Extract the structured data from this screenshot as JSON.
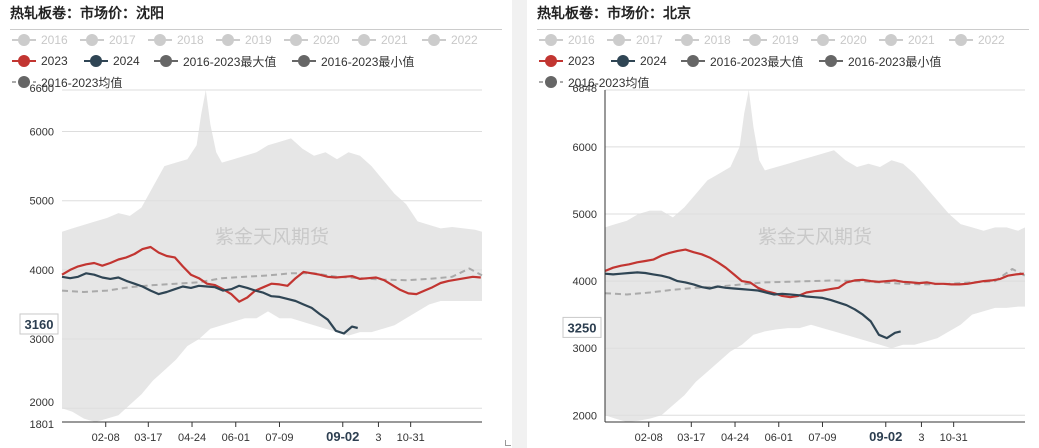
{
  "panels": [
    {
      "title": "热轧板卷：市场价：沈阳",
      "value_badge": "3160",
      "watermark": "紫金天风期货",
      "legend": [
        {
          "label": "2016",
          "enabled": false
        },
        {
          "label": "2017",
          "enabled": false
        },
        {
          "label": "2018",
          "enabled": false
        },
        {
          "label": "2019",
          "enabled": false
        },
        {
          "label": "2020",
          "enabled": false
        },
        {
          "label": "2021",
          "enabled": false
        },
        {
          "label": "2022",
          "enabled": false
        },
        {
          "label": "2023",
          "enabled": true
        },
        {
          "label": "2024",
          "enabled": true
        },
        {
          "label": "2016-2023最大值",
          "enabled": true
        },
        {
          "label": "2016-2023最小值",
          "enabled": true
        },
        {
          "label": "2016-2023均值",
          "enabled": true
        }
      ],
      "x_ticks": [
        "02-08",
        "03-17",
        "04-24",
        "06-01",
        "07-09",
        "09-02",
        "3",
        "10-31"
      ],
      "x_tick_bold": "09-02",
      "y_tick_labels": [
        "6600",
        "6000",
        "5000",
        "4000",
        "3000",
        "2000",
        "1801"
      ]
    },
    {
      "title": "热轧板卷：市场价：北京",
      "value_badge": "3250",
      "watermark": "紫金天风期货",
      "legend": [
        {
          "label": "2016",
          "enabled": false
        },
        {
          "label": "2017",
          "enabled": false
        },
        {
          "label": "2018",
          "enabled": false
        },
        {
          "label": "2019",
          "enabled": false
        },
        {
          "label": "2020",
          "enabled": false
        },
        {
          "label": "2021",
          "enabled": false
        },
        {
          "label": "2022",
          "enabled": false
        },
        {
          "label": "2023",
          "enabled": true
        },
        {
          "label": "2024",
          "enabled": true
        },
        {
          "label": "2016-2023最大值",
          "enabled": true
        },
        {
          "label": "2016-2023最小值",
          "enabled": true
        },
        {
          "label": "2016-2023均值",
          "enabled": true
        }
      ],
      "x_ticks": [
        "02-08",
        "03-17",
        "04-24",
        "06-01",
        "07-09",
        "09-02",
        "3",
        "10-31"
      ],
      "x_tick_bold": "09-02",
      "y_tick_labels": [
        "6848",
        "6000",
        "5000",
        "4000",
        "3000",
        "2000"
      ]
    }
  ],
  "colors": {
    "series_2023": "#c23531",
    "series_2024": "#2f4554",
    "max_min_marker": "#666666",
    "mean_line": "#aaaaaa",
    "band_fill": "#e6e6e6",
    "disabled": "#cccccc"
  },
  "chart_data": [
    {
      "type": "line",
      "title": "热轧板卷：市场价：沈阳",
      "ylim": [
        1801,
        6600
      ],
      "yticks": [
        6600,
        6000,
        5000,
        4000,
        3000,
        2000,
        1801
      ],
      "x_axis_type": "day_of_year",
      "x_domain": [
        1,
        366
      ],
      "x_tick_days": [
        39,
        76,
        114,
        152,
        190,
        245,
        276,
        304
      ],
      "x_tick_labels": [
        "02-08",
        "03-17",
        "04-24",
        "06-01",
        "07-09",
        "09-02",
        "3",
        "10-31"
      ],
      "last_value_label": 3160,
      "series": [
        {
          "name": "2023",
          "x": [
            1,
            8,
            15,
            22,
            29,
            36,
            43,
            50,
            57,
            64,
            71,
            78,
            85,
            92,
            99,
            106,
            113,
            120,
            127,
            134,
            141,
            148,
            155,
            162,
            169,
            176,
            183,
            190,
            197,
            204,
            211,
            218,
            225,
            232,
            239,
            246,
            253,
            260,
            267,
            274,
            281,
            288,
            295,
            302,
            309,
            316,
            323,
            330,
            337,
            344,
            351,
            358,
            365
          ],
          "y": [
            3930,
            4000,
            4050,
            4080,
            4100,
            4060,
            4100,
            4150,
            4180,
            4230,
            4300,
            4330,
            4250,
            4200,
            4180,
            4050,
            3930,
            3880,
            3800,
            3780,
            3720,
            3650,
            3540,
            3600,
            3700,
            3750,
            3800,
            3790,
            3770,
            3880,
            3970,
            3950,
            3930,
            3900,
            3890,
            3900,
            3910,
            3870,
            3880,
            3890,
            3850,
            3780,
            3710,
            3660,
            3650,
            3700,
            3750,
            3810,
            3840,
            3860,
            3880,
            3900,
            3890
          ]
        },
        {
          "name": "2024",
          "x": [
            1,
            8,
            15,
            22,
            29,
            36,
            43,
            50,
            57,
            64,
            71,
            78,
            85,
            92,
            99,
            106,
            113,
            120,
            127,
            134,
            141,
            148,
            155,
            162,
            169,
            176,
            183,
            190,
            197,
            204,
            211,
            218,
            225,
            232,
            239,
            246,
            253,
            258
          ],
          "y": [
            3900,
            3880,
            3900,
            3950,
            3930,
            3890,
            3870,
            3890,
            3840,
            3800,
            3760,
            3700,
            3650,
            3680,
            3720,
            3760,
            3740,
            3770,
            3760,
            3750,
            3700,
            3720,
            3770,
            3740,
            3700,
            3670,
            3620,
            3610,
            3580,
            3550,
            3500,
            3450,
            3360,
            3280,
            3120,
            3080,
            3180,
            3160
          ]
        },
        {
          "name": "2016-2023最大值",
          "x": [
            1,
            10,
            20,
            30,
            40,
            50,
            60,
            70,
            80,
            90,
            100,
            110,
            118,
            122,
            126,
            130,
            135,
            140,
            150,
            160,
            170,
            180,
            190,
            200,
            210,
            220,
            230,
            240,
            250,
            260,
            270,
            280,
            290,
            300,
            310,
            320,
            330,
            340,
            350,
            360,
            366
          ],
          "y": [
            4550,
            4600,
            4650,
            4700,
            4750,
            4820,
            4780,
            4900,
            5200,
            5500,
            5550,
            5600,
            5800,
            6250,
            6600,
            6100,
            5700,
            5550,
            5600,
            5650,
            5700,
            5800,
            5850,
            5900,
            5750,
            5650,
            5700,
            5600,
            5700,
            5650,
            5500,
            5300,
            5100,
            4950,
            4700,
            4650,
            4600,
            4620,
            4600,
            4580,
            4550
          ]
        },
        {
          "name": "2016-2023最小值",
          "x": [
            1,
            10,
            20,
            30,
            40,
            50,
            60,
            70,
            80,
            90,
            100,
            110,
            120,
            130,
            140,
            150,
            160,
            170,
            180,
            190,
            200,
            210,
            220,
            230,
            240,
            250,
            260,
            270,
            280,
            290,
            300,
            310,
            320,
            330,
            340,
            350,
            360,
            366
          ],
          "y": [
            2000,
            1950,
            1850,
            1801,
            1850,
            1900,
            2050,
            2200,
            2400,
            2550,
            2700,
            2900,
            3000,
            3150,
            3200,
            3250,
            3300,
            3300,
            3400,
            3300,
            3300,
            3250,
            3200,
            3150,
            3100,
            3050,
            3100,
            3100,
            3150,
            3200,
            3300,
            3400,
            3500,
            3550,
            3550,
            3550,
            3550,
            3550
          ]
        },
        {
          "name": "2016-2023均值",
          "x": [
            1,
            20,
            40,
            60,
            80,
            100,
            120,
            140,
            160,
            180,
            200,
            220,
            240,
            260,
            280,
            300,
            320,
            340,
            355,
            366
          ],
          "y": [
            3700,
            3680,
            3700,
            3750,
            3780,
            3800,
            3820,
            3880,
            3900,
            3920,
            3950,
            3950,
            3900,
            3880,
            3860,
            3850,
            3870,
            3900,
            4020,
            3920
          ]
        }
      ]
    },
    {
      "type": "line",
      "title": "热轧板卷：市场价：北京",
      "ylim": [
        1900,
        6848
      ],
      "yticks": [
        6848,
        6000,
        5000,
        4000,
        3000,
        2000
      ],
      "x_axis_type": "day_of_year",
      "x_domain": [
        1,
        366
      ],
      "x_tick_days": [
        39,
        76,
        114,
        152,
        190,
        245,
        276,
        304
      ],
      "x_tick_labels": [
        "02-08",
        "03-17",
        "04-24",
        "06-01",
        "07-09",
        "09-02",
        "3",
        "10-31"
      ],
      "last_value_label": 3250,
      "series": [
        {
          "name": "2023",
          "x": [
            1,
            8,
            15,
            22,
            29,
            36,
            43,
            50,
            57,
            64,
            71,
            78,
            85,
            92,
            99,
            106,
            113,
            120,
            127,
            134,
            141,
            148,
            155,
            162,
            169,
            176,
            183,
            190,
            197,
            204,
            211,
            218,
            225,
            232,
            239,
            246,
            253,
            260,
            267,
            274,
            281,
            288,
            295,
            302,
            309,
            316,
            323,
            330,
            337,
            344,
            351,
            358,
            365
          ],
          "y": [
            4150,
            4200,
            4230,
            4250,
            4280,
            4300,
            4320,
            4380,
            4420,
            4450,
            4470,
            4430,
            4400,
            4350,
            4280,
            4200,
            4100,
            4000,
            3980,
            3900,
            3850,
            3820,
            3780,
            3760,
            3780,
            3830,
            3850,
            3860,
            3880,
            3900,
            3980,
            4010,
            4020,
            4000,
            3990,
            4000,
            4010,
            3990,
            3980,
            3970,
            3980,
            3960,
            3960,
            3950,
            3950,
            3960,
            3980,
            4000,
            4010,
            4030,
            4080,
            4100,
            4110
          ]
        },
        {
          "name": "2024",
          "x": [
            1,
            8,
            15,
            22,
            29,
            36,
            43,
            50,
            57,
            64,
            71,
            78,
            85,
            92,
            99,
            106,
            113,
            120,
            127,
            134,
            141,
            148,
            155,
            162,
            169,
            176,
            183,
            190,
            197,
            204,
            211,
            218,
            225,
            232,
            239,
            246,
            253,
            258
          ],
          "y": [
            4110,
            4100,
            4110,
            4120,
            4130,
            4120,
            4100,
            4080,
            4050,
            4000,
            3980,
            3950,
            3910,
            3890,
            3920,
            3900,
            3890,
            3880,
            3870,
            3860,
            3830,
            3800,
            3810,
            3800,
            3790,
            3770,
            3760,
            3750,
            3720,
            3680,
            3640,
            3580,
            3500,
            3400,
            3200,
            3150,
            3230,
            3250
          ]
        },
        {
          "name": "2016-2023最大值",
          "x": [
            1,
            10,
            20,
            30,
            40,
            50,
            60,
            70,
            80,
            90,
            100,
            110,
            118,
            122,
            126,
            130,
            135,
            140,
            150,
            160,
            170,
            180,
            190,
            200,
            210,
            220,
            230,
            240,
            250,
            260,
            270,
            280,
            290,
            300,
            310,
            320,
            330,
            340,
            350,
            360,
            366
          ],
          "y": [
            4800,
            4850,
            4900,
            5000,
            5050,
            5050,
            4950,
            5100,
            5300,
            5500,
            5600,
            5700,
            6000,
            6500,
            6848,
            6300,
            5800,
            5650,
            5700,
            5750,
            5800,
            5850,
            5900,
            5950,
            5800,
            5700,
            5750,
            5700,
            5800,
            5750,
            5600,
            5400,
            5200,
            5000,
            4850,
            4800,
            4750,
            4800,
            4800,
            4750,
            4800
          ]
        },
        {
          "name": "2016-2023最小值",
          "x": [
            1,
            10,
            20,
            30,
            40,
            50,
            60,
            70,
            80,
            90,
            100,
            110,
            120,
            130,
            140,
            150,
            160,
            170,
            180,
            190,
            200,
            210,
            220,
            230,
            240,
            250,
            260,
            270,
            280,
            290,
            300,
            310,
            320,
            330,
            340,
            350,
            360,
            366
          ],
          "y": [
            2000,
            1950,
            1900,
            1920,
            1950,
            2000,
            2150,
            2300,
            2500,
            2650,
            2800,
            2950,
            3050,
            3200,
            3250,
            3280,
            3300,
            3300,
            3350,
            3300,
            3250,
            3200,
            3150,
            3100,
            3050,
            3000,
            3050,
            3050,
            3100,
            3150,
            3250,
            3350,
            3500,
            3550,
            3600,
            3600,
            3620,
            3620
          ]
        },
        {
          "name": "2016-2023均值",
          "x": [
            1,
            20,
            40,
            60,
            80,
            100,
            120,
            140,
            160,
            180,
            200,
            220,
            240,
            260,
            280,
            300,
            320,
            340,
            355,
            366
          ],
          "y": [
            3820,
            3800,
            3830,
            3870,
            3900,
            3920,
            3950,
            3980,
            3990,
            4000,
            4010,
            4000,
            3980,
            3960,
            3950,
            3960,
            3980,
            4000,
            4180,
            4080
          ]
        }
      ]
    }
  ]
}
